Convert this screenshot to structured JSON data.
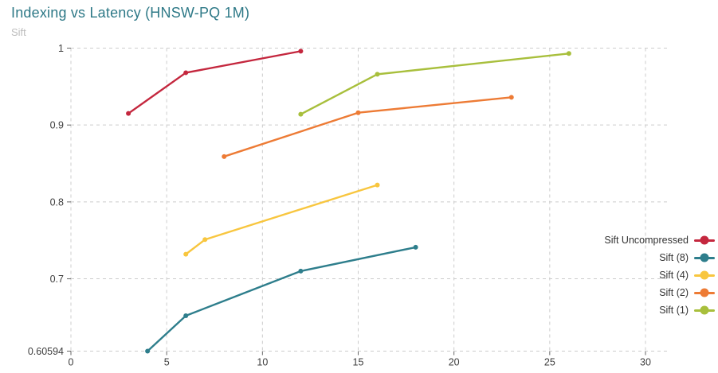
{
  "title": "Indexing vs Latency (HNSW-PQ 1M)",
  "subtitle": "Sift",
  "colors": {
    "title": "#2e7987",
    "subtitle": "#bcbcbc",
    "grid": "#cccccc",
    "tick": "#666666",
    "tick_label": "#3d3d3d",
    "legend_label": "#333333",
    "background": "#ffffff"
  },
  "chart_data": {
    "type": "line",
    "title": "Indexing vs Latency (HNSW-PQ 1M)",
    "subtitle": "Sift",
    "xlabel": "",
    "ylabel": "",
    "xlim": [
      0,
      31.2
    ],
    "ylim": [
      0.60594,
      1
    ],
    "x_ticks": [
      {
        "label": "0",
        "value": 0
      },
      {
        "label": "5",
        "value": 5
      },
      {
        "label": "10",
        "value": 10
      },
      {
        "label": "15",
        "value": 15
      },
      {
        "label": "20",
        "value": 20
      },
      {
        "label": "25",
        "value": 25
      },
      {
        "label": "30",
        "value": 30
      }
    ],
    "y_ticks": [
      {
        "label": "1",
        "value": 1
      },
      {
        "label": "0.9",
        "value": 0.9
      },
      {
        "label": "0.8",
        "value": 0.8
      },
      {
        "label": "0.7",
        "value": 0.7
      },
      {
        "label": "0.60594",
        "value": 0.60594
      }
    ],
    "grid": "dashed",
    "legend_position": "right",
    "series": [
      {
        "name": "Sift Uncompressed",
        "color": "#c4273e",
        "points": [
          [
            3,
            0.915
          ],
          [
            6,
            0.968
          ],
          [
            12,
            0.996
          ]
        ]
      },
      {
        "name": "Sift (8)",
        "color": "#2e7e8c",
        "points": [
          [
            4,
            0.60594
          ],
          [
            6,
            0.652
          ],
          [
            12,
            0.71
          ],
          [
            18,
            0.741
          ]
        ]
      },
      {
        "name": "Sift (4)",
        "color": "#f8c63f",
        "points": [
          [
            6,
            0.732
          ],
          [
            7,
            0.751
          ],
          [
            16,
            0.822
          ]
        ]
      },
      {
        "name": "Sift (2)",
        "color": "#ed7b35",
        "points": [
          [
            8,
            0.859
          ],
          [
            15,
            0.916
          ],
          [
            23,
            0.936
          ]
        ]
      },
      {
        "name": "Sift (1)",
        "color": "#a8bf3c",
        "points": [
          [
            12,
            0.914
          ],
          [
            16,
            0.966
          ],
          [
            26,
            0.993
          ]
        ]
      }
    ]
  }
}
